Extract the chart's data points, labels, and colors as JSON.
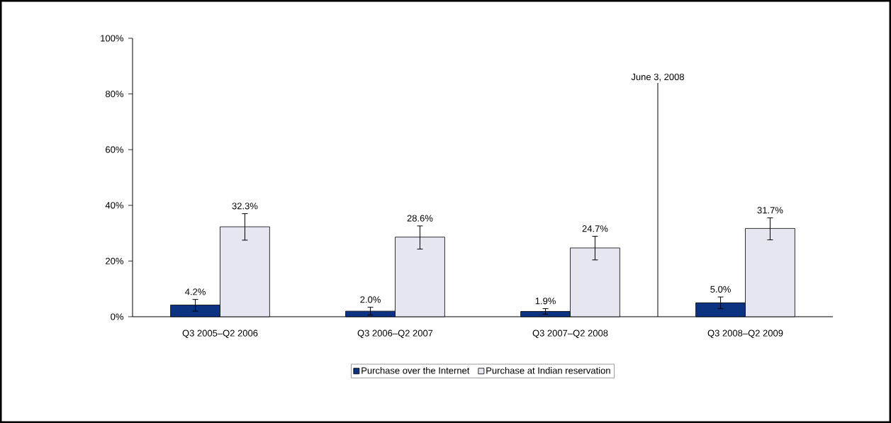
{
  "chart_data": {
    "type": "bar",
    "categories": [
      "Q3 2005–Q2  2006",
      "Q3 2006–Q2  2007",
      "Q3 2007–Q2  2008",
      "Q3 2008–Q2  2009"
    ],
    "series": [
      {
        "name": "Purchase over the Internet",
        "color": "#0b3382",
        "values": [
          4.2,
          2.0,
          1.9,
          5.0
        ],
        "errors": [
          [
            2.0,
            6.2
          ],
          [
            0.6,
            3.4
          ],
          [
            0.9,
            2.9
          ],
          [
            2.9,
            7.1
          ]
        ],
        "value_labels": [
          "4.2%",
          "2.0%",
          "1.9%",
          "5.0%"
        ]
      },
      {
        "name": "Purchase at Indian reservation",
        "color": "#e6e6f0",
        "values": [
          32.3,
          28.6,
          24.7,
          31.7
        ],
        "errors": [
          [
            27.5,
            37.0
          ],
          [
            24.3,
            32.6
          ],
          [
            20.4,
            28.9
          ],
          [
            27.6,
            35.5
          ]
        ],
        "value_labels": [
          "32.3%",
          "28.6%",
          "24.7%",
          "31.7%"
        ]
      }
    ],
    "ylim": [
      0,
      100
    ],
    "yticks": [
      {
        "value": 0,
        "label": "0%"
      },
      {
        "value": 20,
        "label": "20%"
      },
      {
        "value": 40,
        "label": "40%"
      },
      {
        "value": 60,
        "label": "60%"
      },
      {
        "value": 80,
        "label": "80%"
      },
      {
        "value": 100,
        "label": "100%"
      }
    ],
    "annotations": [
      "June 3, 2008"
    ],
    "grid": false,
    "legend": "bottom"
  }
}
